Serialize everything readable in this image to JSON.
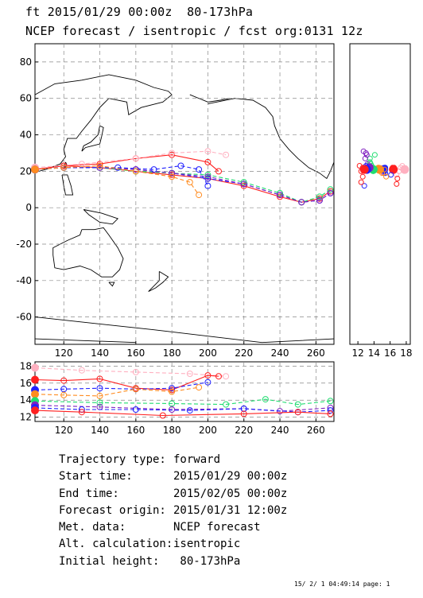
{
  "header": {
    "line1": "ft 2015/01/29 00:00z  80-173hPa",
    "line2": "NCEP forecast / isentropic / fcst org:0131 12z"
  },
  "info": [
    {
      "label": "Trajectory type:",
      "value": "forward"
    },
    {
      "label": "Start time:",
      "value": "2015/01/29 00:00z"
    },
    {
      "label": "End time:",
      "value": "2015/02/05 00:00z"
    },
    {
      "label": "Forecast origin:",
      "value": "2015/01/31 12:00z"
    },
    {
      "label": "Met. data:",
      "value": "NCEP forecast"
    },
    {
      "label": "Alt. calculation:",
      "value": "isentropic"
    },
    {
      "label": "Initial height:",
      "value": " 80-173hPa"
    }
  ],
  "footer": "15/ 2/ 1 04:49:14 page: 1",
  "chart_data": [
    {
      "type": "line",
      "panel": "map",
      "xlim": [
        104,
        270
      ],
      "ylim": [
        -75,
        90
      ],
      "xticks": [
        "120",
        "140",
        "160",
        "180",
        "200",
        "220",
        "240",
        "260"
      ],
      "yticks": [
        "-60",
        "-40",
        "-20",
        "0",
        "20",
        "40",
        "60",
        "80"
      ],
      "grid": true,
      "series": [
        {
          "color": "#ff2020",
          "x": [
            104,
            120,
            140,
            160,
            180,
            200,
            220,
            240,
            252,
            262,
            268
          ],
          "y": [
            21,
            23,
            22,
            20,
            18,
            16,
            12,
            6,
            3,
            5,
            9
          ]
        },
        {
          "color": "#2020ff",
          "x": [
            104,
            120,
            140,
            160,
            180,
            200,
            220,
            240,
            252,
            262,
            268
          ],
          "y": [
            21,
            22,
            22,
            21,
            19,
            16,
            13,
            7,
            3,
            4,
            8
          ]
        },
        {
          "color": "#20dd70",
          "x": [
            104,
            120,
            140,
            160,
            180,
            200,
            220,
            240,
            252,
            262,
            268
          ],
          "y": [
            21,
            22,
            22,
            20,
            19,
            18,
            14,
            8,
            3,
            6,
            10
          ]
        },
        {
          "color": "#8020c0",
          "x": [
            104,
            120,
            140,
            160,
            180,
            200,
            220,
            240,
            252,
            262,
            268
          ],
          "y": [
            21,
            22,
            22,
            21,
            19,
            17,
            13,
            7,
            3,
            4,
            8
          ]
        },
        {
          "color": "#ff2020",
          "x": [
            104,
            120,
            140,
            160,
            180,
            200,
            206
          ],
          "y": [
            21,
            23,
            24,
            27,
            29,
            25,
            20
          ]
        },
        {
          "color": "#ffb0c0",
          "x": [
            104,
            130,
            160,
            180,
            200,
            210
          ],
          "y": [
            22,
            24,
            27,
            30,
            31,
            29
          ]
        },
        {
          "color": "#2020ff",
          "x": [
            104,
            120,
            150,
            170,
            185,
            195,
            200
          ],
          "y": [
            21,
            22,
            22,
            21,
            23,
            21,
            12
          ]
        },
        {
          "color": "#ff8c20",
          "x": [
            104,
            120,
            140,
            160,
            180,
            190,
            195
          ],
          "y": [
            21,
            22,
            23,
            20,
            17,
            14,
            7
          ]
        }
      ]
    },
    {
      "type": "line",
      "panel": "height-time",
      "xlim": [
        104,
        270
      ],
      "ylim": [
        11.5,
        18.5
      ],
      "xticks": [
        "120",
        "140",
        "160",
        "180",
        "200",
        "220",
        "240",
        "260"
      ],
      "yticks": [
        "12",
        "14",
        "16",
        "18"
      ],
      "grid": true,
      "series": [
        {
          "color": "#ffb0c0",
          "x": [
            104,
            130,
            160,
            190,
            210
          ],
          "y": [
            17.8,
            17.5,
            17.3,
            17.1,
            16.8
          ]
        },
        {
          "color": "#ff2020",
          "x": [
            104,
            120,
            140,
            160,
            180,
            200,
            206
          ],
          "y": [
            16.4,
            16.3,
            16.5,
            15.4,
            15.2,
            16.9,
            16.8
          ]
        },
        {
          "color": "#2020ff",
          "x": [
            104,
            120,
            140,
            160,
            180,
            200
          ],
          "y": [
            15.2,
            15.3,
            15.4,
            15.3,
            15.4,
            16.1
          ]
        },
        {
          "color": "#ff8c20",
          "x": [
            104,
            120,
            140,
            160,
            180,
            195
          ],
          "y": [
            14.7,
            14.6,
            14.5,
            15.3,
            15.0,
            15.5
          ]
        },
        {
          "color": "#20dd70",
          "x": [
            104,
            140,
            180,
            210,
            232,
            250,
            268
          ],
          "y": [
            13.9,
            13.7,
            13.6,
            13.5,
            14.1,
            13.5,
            13.9
          ]
        },
        {
          "color": "#8020c0",
          "x": [
            104,
            140,
            180,
            220,
            240,
            268
          ],
          "y": [
            13.4,
            13.2,
            12.9,
            13.0,
            12.7,
            13.1
          ]
        },
        {
          "color": "#2020ff",
          "x": [
            104,
            130,
            160,
            190,
            220,
            250,
            268
          ],
          "y": [
            13.1,
            12.9,
            12.9,
            12.8,
            13.0,
            12.6,
            12.8
          ]
        },
        {
          "color": "#ff2020",
          "x": [
            104,
            130,
            175,
            220,
            250,
            268
          ],
          "y": [
            12.8,
            12.6,
            12.2,
            12.4,
            12.6,
            12.4
          ]
        }
      ]
    },
    {
      "type": "scatter",
      "panel": "height-latitude",
      "xlim": [
        11,
        18.5
      ],
      "ylim": [
        -75,
        90
      ],
      "xticks": [
        "12",
        "14",
        "16",
        "18"
      ],
      "grid": false
    }
  ]
}
